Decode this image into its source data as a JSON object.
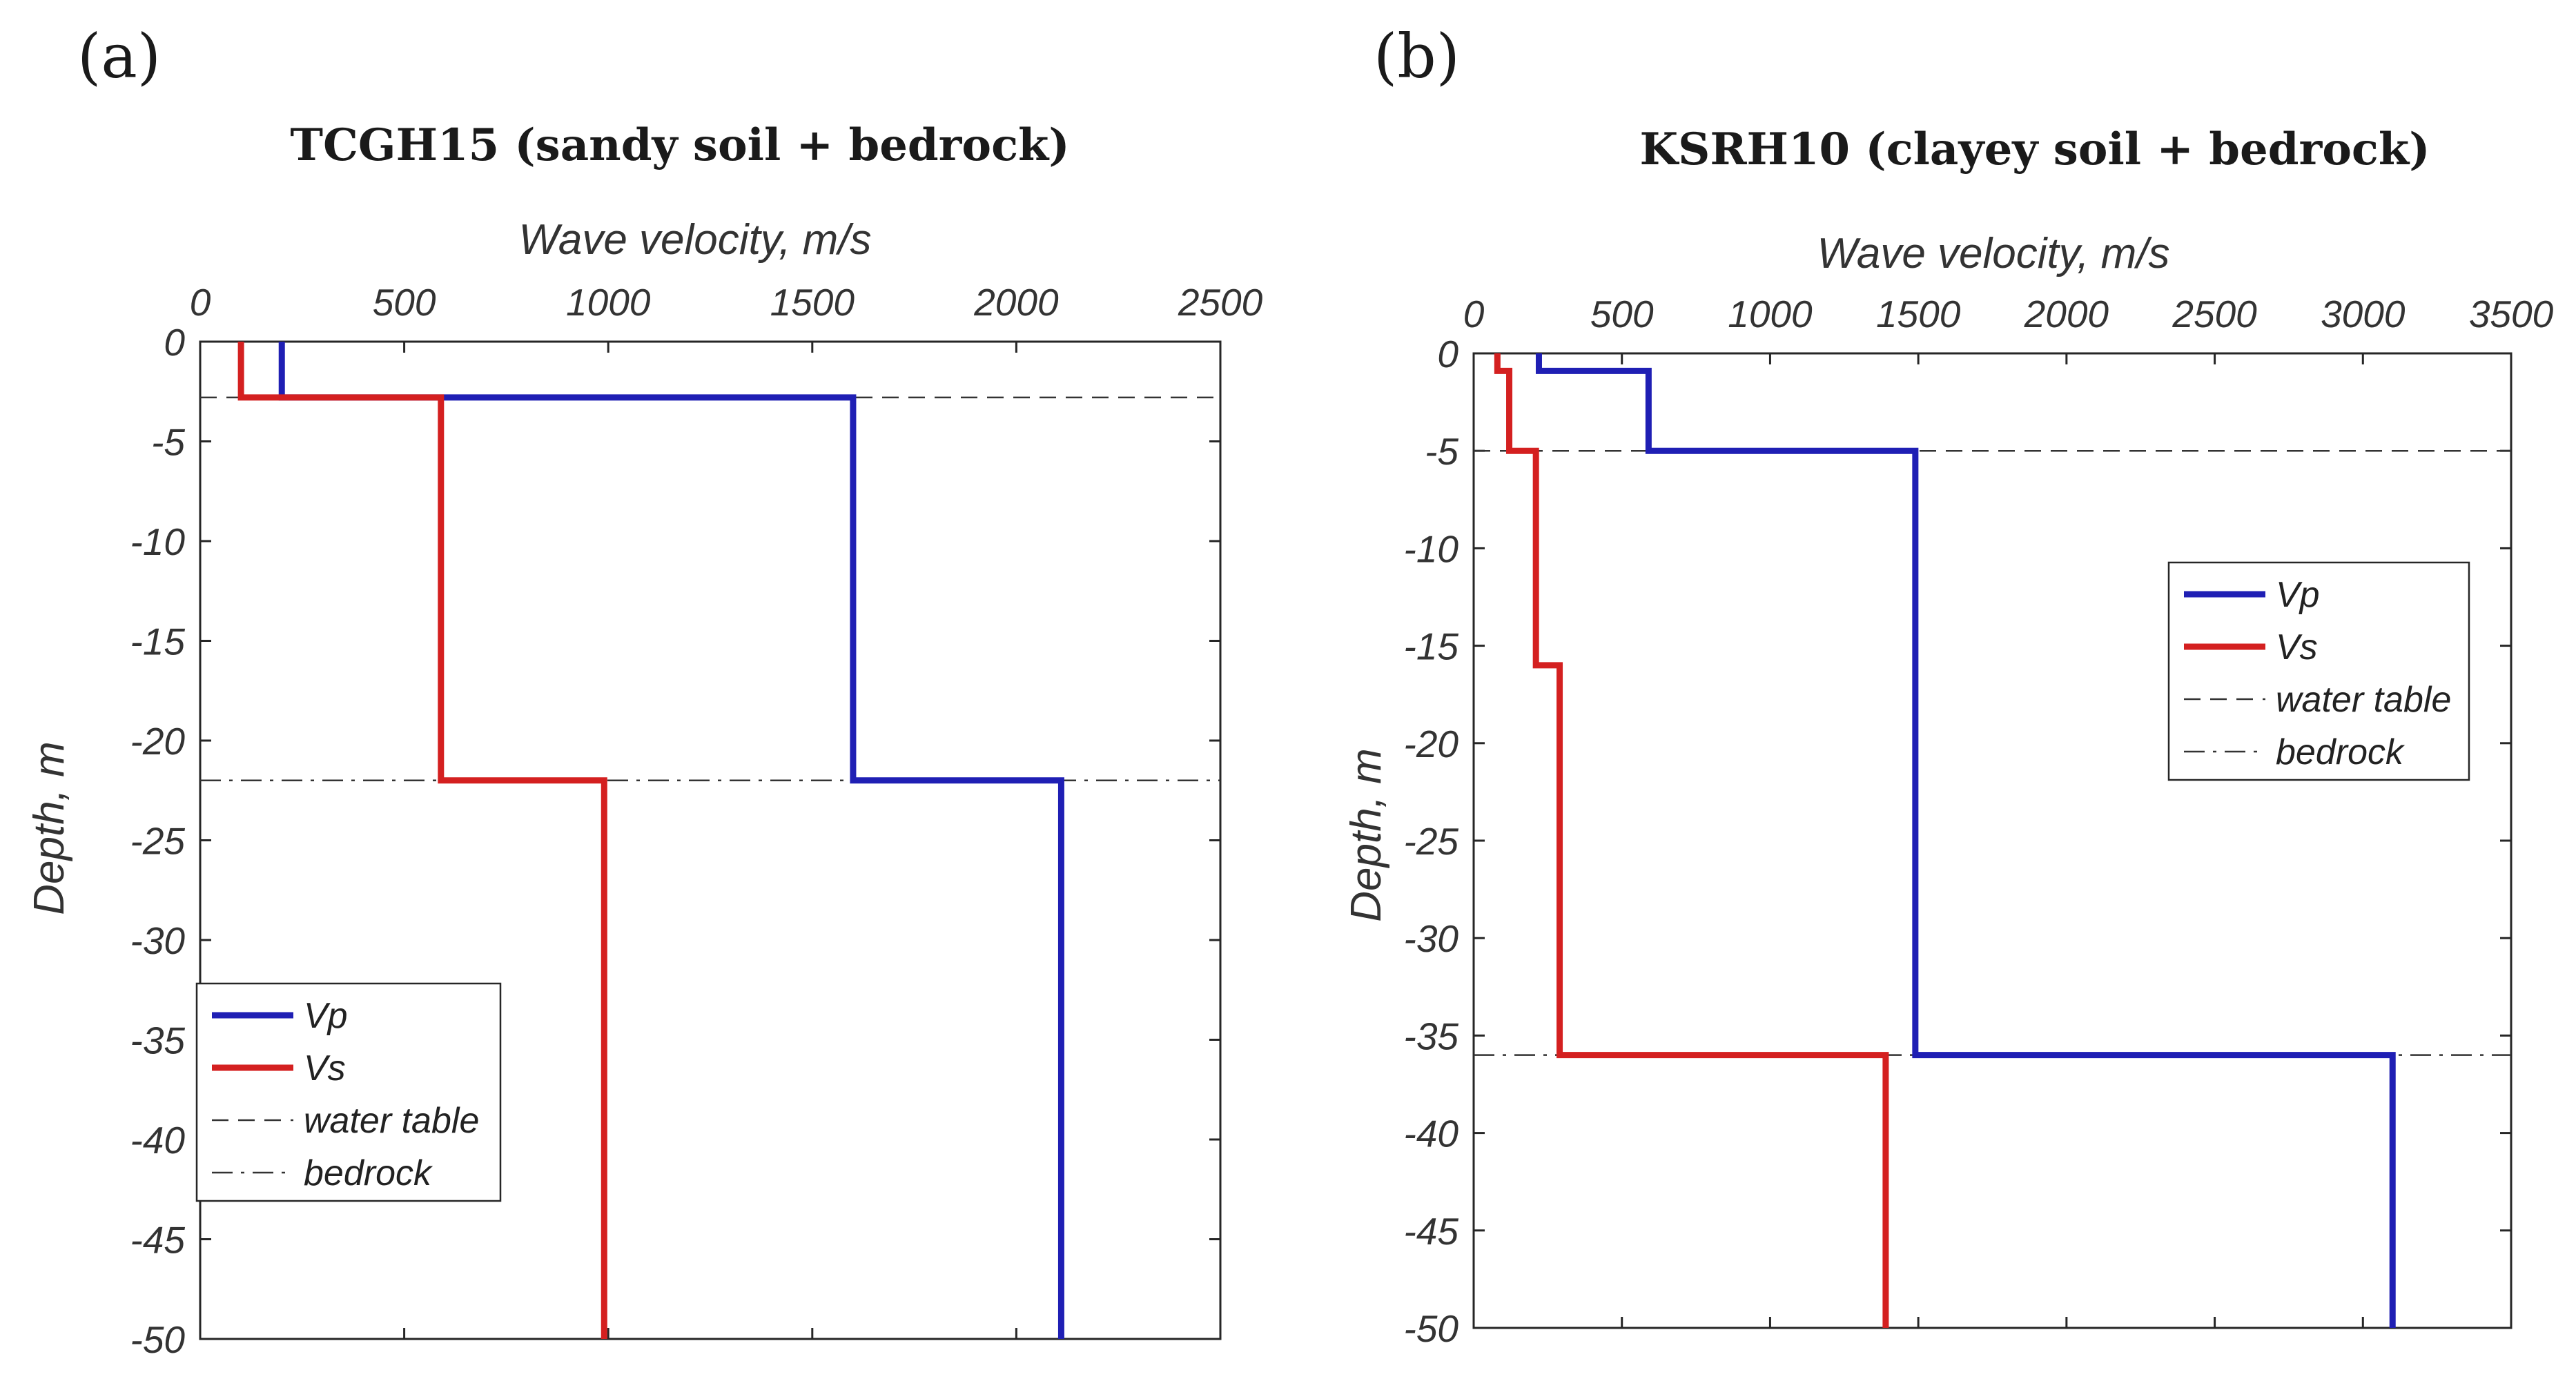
{
  "chart_data": [
    {
      "type": "line",
      "panel_label": "(a)",
      "title": "TCGH15 (sandy soil + bedrock)",
      "xlabel": "Wave velocity, m/s",
      "ylabel": "Depth, m",
      "xlim": [
        0,
        2500
      ],
      "ylim": [
        -50,
        0
      ],
      "xticks": [
        0,
        500,
        1000,
        1500,
        2000,
        2500
      ],
      "yticks": [
        0,
        -5,
        -10,
        -15,
        -20,
        -25,
        -30,
        -35,
        -40,
        -45,
        -50
      ],
      "series": [
        {
          "name": "Vp",
          "color": "#1f1fb4",
          "x": [
            200,
            200,
            1600,
            1600,
            2110,
            2110
          ],
          "y": [
            0,
            -2.8,
            -2.8,
            -22,
            -22,
            -50
          ]
        },
        {
          "name": "Vs",
          "color": "#d42020",
          "x": [
            100,
            100,
            590,
            590,
            990,
            990
          ],
          "y": [
            0,
            -2.8,
            -2.8,
            -22,
            -22,
            -50
          ]
        }
      ],
      "reference_lines": [
        {
          "name": "water table",
          "depth": -2.8,
          "style": "dashed"
        },
        {
          "name": "bedrock",
          "depth": -22,
          "style": "dashdot"
        }
      ],
      "legend": {
        "position": "bottom-left",
        "entries": [
          "Vp",
          "Vs",
          "water table",
          "bedrock"
        ]
      }
    },
    {
      "type": "line",
      "panel_label": "(b)",
      "title": "KSRH10 (clayey soil + bedrock)",
      "xlabel": "Wave velocity, m/s",
      "ylabel": "Depth, m",
      "xlim": [
        0,
        3500
      ],
      "ylim": [
        -50,
        0
      ],
      "xticks": [
        0,
        500,
        1000,
        1500,
        2000,
        2500,
        3000,
        3500
      ],
      "yticks": [
        0,
        -5,
        -10,
        -15,
        -20,
        -25,
        -30,
        -35,
        -40,
        -45,
        -50
      ],
      "series": [
        {
          "name": "Vp",
          "color": "#1f1fb4",
          "x": [
            220,
            220,
            590,
            590,
            1490,
            1490,
            3100,
            3100
          ],
          "y": [
            0,
            -0.9,
            -0.9,
            -5,
            -5,
            -36,
            -36,
            -50
          ]
        },
        {
          "name": "Vs",
          "color": "#d42020",
          "x": [
            80,
            80,
            120,
            120,
            210,
            210,
            290,
            290,
            1390,
            1390
          ],
          "y": [
            0,
            -0.9,
            -0.9,
            -5,
            -5,
            -16,
            -16,
            -36,
            -36,
            -50
          ]
        }
      ],
      "reference_lines": [
        {
          "name": "water table",
          "depth": -5,
          "style": "dashed"
        },
        {
          "name": "bedrock",
          "depth": -36,
          "style": "dashdot"
        }
      ],
      "legend": {
        "position": "top-right",
        "entries": [
          "Vp",
          "Vs",
          "water table",
          "bedrock"
        ]
      }
    }
  ]
}
